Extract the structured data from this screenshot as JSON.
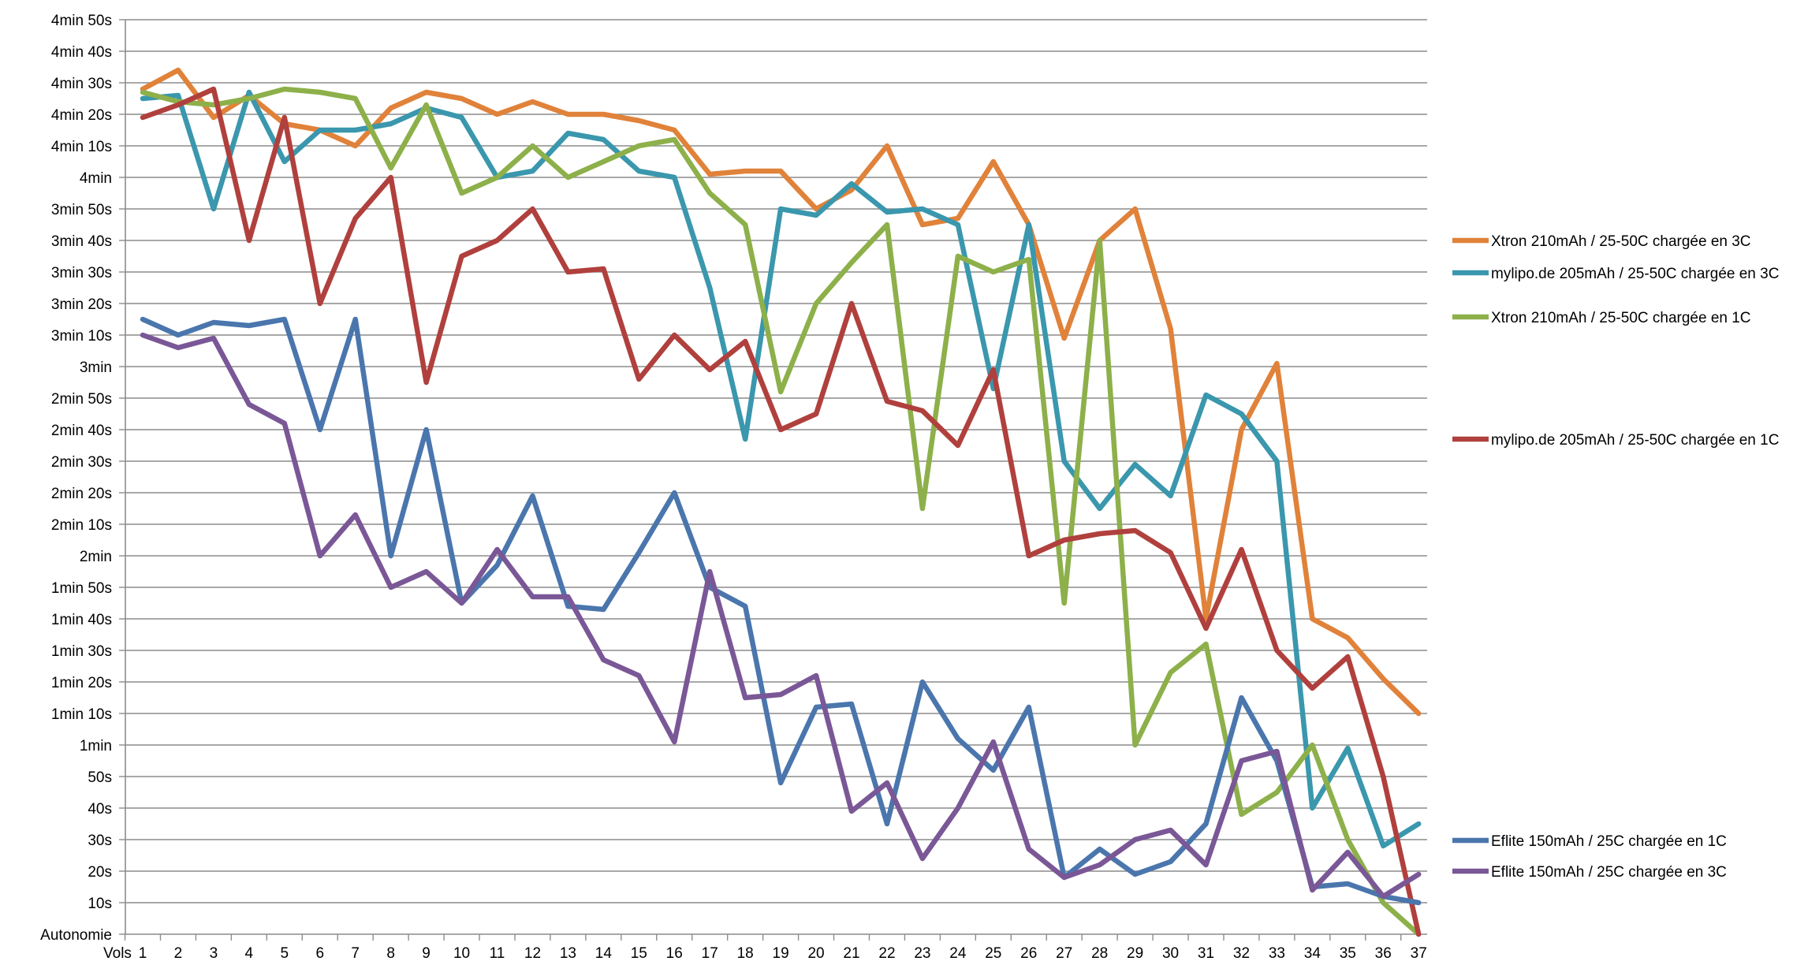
{
  "chart_data": {
    "type": "line",
    "ylabel": "Autonomie",
    "xlabel": "Vols",
    "x": [
      1,
      2,
      3,
      4,
      5,
      6,
      7,
      8,
      9,
      10,
      11,
      12,
      13,
      14,
      15,
      16,
      17,
      18,
      19,
      20,
      21,
      22,
      23,
      24,
      25,
      26,
      27,
      28,
      29,
      30,
      31,
      32,
      33,
      34,
      35,
      36,
      37
    ],
    "ylim": [
      0,
      290
    ],
    "ytick_values": [
      0,
      10,
      20,
      30,
      40,
      50,
      60,
      70,
      80,
      90,
      100,
      110,
      120,
      130,
      140,
      150,
      160,
      170,
      180,
      190,
      200,
      210,
      220,
      230,
      240,
      250,
      260,
      270,
      280,
      290
    ],
    "ytick_labels": [
      "Autonomie",
      "10s",
      "20s",
      "30s",
      "40s",
      "50s",
      "1min",
      "1min 10s",
      "1min 20s",
      "1min 30s",
      "1min 40s",
      "1min 50s",
      "2min",
      "2min 10s",
      "2min 20s",
      "2min 30s",
      "2min 40s",
      "2min 50s",
      "3min",
      "3min 10s",
      "3min 20s",
      "3min 30s",
      "3min 40s",
      "3min 50s",
      "4min",
      "4min 10s",
      "4min 20s",
      "4min 30s",
      "4min 40s",
      "4min 50s"
    ],
    "grid": true,
    "legend_position": "right",
    "series": [
      {
        "name": "Xtron 210mAh / 25-50C chargée en 3C",
        "color": "#e0823a",
        "values": [
          268,
          274,
          259,
          266,
          257,
          255,
          250,
          262,
          267,
          265,
          260,
          264,
          260,
          260,
          258,
          255,
          241,
          242,
          242,
          230,
          236,
          250,
          225,
          227,
          245,
          225,
          189,
          220,
          230,
          192,
          100,
          160,
          181,
          100,
          94,
          81,
          70
        ]
      },
      {
        "name": "mylipo.de 205mAh / 25-50C chargée en 3C",
        "color": "#3a97ad",
        "values": [
          265,
          266,
          230,
          267,
          245,
          255,
          255,
          257,
          262,
          259,
          240,
          242,
          254,
          252,
          242,
          240,
          205,
          157,
          230,
          228,
          238,
          229,
          230,
          225,
          173,
          225,
          150,
          135,
          149,
          139,
          171,
          165,
          150,
          40,
          59,
          28,
          35
        ]
      },
      {
        "name": "Xtron 210mAh / 25-50C chargée en 1C",
        "color": "#8db04a",
        "values": [
          267,
          264,
          263,
          265,
          268,
          267,
          265,
          243,
          263,
          235,
          240,
          250,
          240,
          245,
          250,
          252,
          235,
          225,
          172,
          200,
          213,
          225,
          135,
          215,
          210,
          214,
          105,
          220,
          60,
          83,
          92,
          38,
          45,
          60,
          30,
          10,
          0
        ]
      },
      {
        "name": "mylipo.de 205mAh / 25-50C chargée en 1C",
        "color": "#b0403d",
        "values": [
          259,
          263,
          268,
          220,
          259,
          200,
          227,
          240,
          175,
          215,
          220,
          230,
          210,
          211,
          176,
          190,
          179,
          188,
          160,
          165,
          200,
          169,
          166,
          155,
          179,
          120,
          125,
          127,
          128,
          121,
          97,
          122,
          90,
          78,
          88,
          50,
          0
        ]
      },
      {
        "name": "Eflite 150mAh / 25C chargée en 1C",
        "color": "#4a76ad",
        "values": [
          195,
          190,
          194,
          193,
          195,
          160,
          195,
          120,
          160,
          105,
          117,
          139,
          104,
          103,
          121,
          140,
          110,
          104,
          48,
          72,
          73,
          35,
          80,
          62,
          52,
          72,
          18,
          27,
          19,
          23,
          35,
          75,
          55,
          15,
          16,
          12,
          10
        ]
      },
      {
        "name": "Eflite 150mAh / 25C chargée en 3C",
        "color": "#7a5796",
        "values": [
          190,
          186,
          189,
          168,
          162,
          120,
          133,
          110,
          115,
          105,
          122,
          107,
          107,
          87,
          82,
          61,
          115,
          75,
          76,
          82,
          39,
          48,
          24,
          40,
          61,
          27,
          18,
          22,
          30,
          33,
          22,
          55,
          58,
          14,
          26,
          12,
          19
        ]
      }
    ]
  }
}
